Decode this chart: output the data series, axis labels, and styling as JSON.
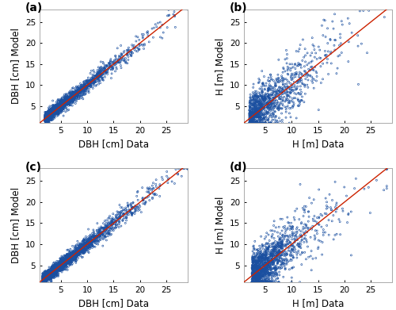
{
  "panels": [
    {
      "label": "(a)",
      "xlabel": "DBH [cm] Data",
      "ylabel": "DBH [cm] Model",
      "xlim": [
        1,
        29
      ],
      "ylim": [
        1,
        28
      ],
      "xticks": [
        5,
        10,
        15,
        20,
        25
      ],
      "yticks": [
        5,
        10,
        15,
        20,
        25
      ],
      "n_points": 2000,
      "seed": 101,
      "noise_scale": 0.7,
      "x_scale": 5.0,
      "x_min": 2.0,
      "x_max": 29.0
    },
    {
      "label": "(b)",
      "xlabel": "H [m] Data",
      "ylabel": "H [m] Model",
      "xlim": [
        1,
        29
      ],
      "ylim": [
        1,
        28
      ],
      "xticks": [
        5,
        10,
        15,
        20,
        25
      ],
      "yticks": [
        5,
        10,
        15,
        20,
        25
      ],
      "n_points": 1200,
      "seed": 202,
      "noise_scale": 2.8,
      "x_scale": 4.5,
      "x_min": 2.0,
      "x_max": 28.0
    },
    {
      "label": "(c)",
      "xlabel": "DBH [cm] Data",
      "ylabel": "DBH [cm] Model",
      "xlim": [
        1,
        29
      ],
      "ylim": [
        1,
        28
      ],
      "xticks": [
        5,
        10,
        15,
        20,
        25
      ],
      "yticks": [
        5,
        10,
        15,
        20,
        25
      ],
      "n_points": 2500,
      "seed": 303,
      "noise_scale": 0.75,
      "x_scale": 5.5,
      "x_min": 1.5,
      "x_max": 29.0
    },
    {
      "label": "(d)",
      "xlabel": "H [m] Data",
      "ylabel": "H [m] Model",
      "xlim": [
        1,
        29
      ],
      "ylim": [
        1,
        28
      ],
      "xticks": [
        5,
        10,
        15,
        20,
        25
      ],
      "yticks": [
        5,
        10,
        15,
        20,
        25
      ],
      "n_points": 1500,
      "seed": 404,
      "noise_scale": 2.6,
      "x_scale": 4.0,
      "x_min": 2.5,
      "x_max": 28.0
    }
  ],
  "marker_color": "#1a4fa0",
  "marker_size": 2.8,
  "marker_lw": 0.45,
  "line_color": "#cc2200",
  "line_width": 1.0,
  "bg_color": "#ffffff",
  "label_fontsize": 8.5,
  "tick_fontsize": 7.5,
  "panel_label_fontsize": 10
}
